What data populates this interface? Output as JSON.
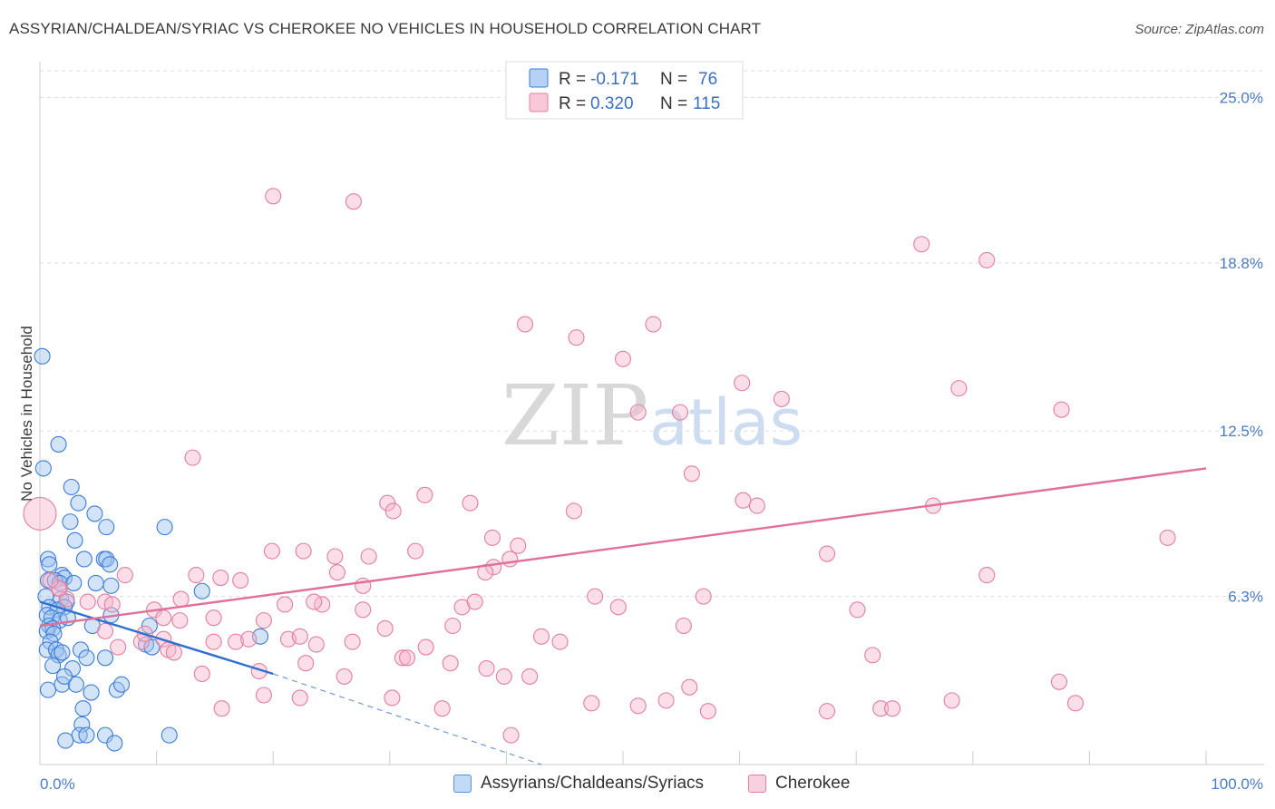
{
  "title": "ASSYRIAN/CHALDEAN/SYRIAC VS CHEROKEE NO VEHICLES IN HOUSEHOLD CORRELATION CHART",
  "source": "Source: ZipAtlas.com",
  "watermark": {
    "zip": "ZIP",
    "atlas": "atlas"
  },
  "colors": {
    "blue_fill": "#9dc2ef",
    "blue_stroke": "#3b7dd8",
    "blue_line": "#2f6fcf",
    "pink_fill": "#f6b6cb",
    "pink_stroke": "#e27fa0",
    "pink_line": "#e0709a",
    "tick_text": "#4a7cc8",
    "grid": "#dddddd"
  },
  "legend": {
    "rows": [
      {
        "r_label": "R =",
        "r_value": "-0.171",
        "n_label": "N =",
        "n_value": "76"
      },
      {
        "r_label": "R =",
        "r_value": "0.320",
        "n_label": "N =",
        "n_value": "115"
      }
    ]
  },
  "bottom_legend": {
    "items": [
      "Assyrians/Chaldeans/Syriacs",
      "Cherokee"
    ]
  },
  "chart_data": {
    "type": "scatter",
    "title": "ASSYRIAN/CHALDEAN/SYRIAC VS CHEROKEE NO VEHICLES IN HOUSEHOLD CORRELATION CHART",
    "xlabel": "",
    "ylabel": "No Vehicles in Household",
    "xlim": [
      0,
      100
    ],
    "ylim": [
      0,
      26
    ],
    "x_tick_labels": [
      "0.0%",
      "100.0%"
    ],
    "y_ticks": [
      6.3,
      12.5,
      18.8,
      25.0
    ],
    "y_tick_labels": [
      "6.3%",
      "12.5%",
      "18.8%",
      "25.0%"
    ],
    "grid": true,
    "series": [
      {
        "name": "Assyrians/Chaldeans/Syriacs",
        "R": -0.171,
        "N": 76,
        "trend": {
          "x0": 0,
          "y0": 6.1,
          "x1": 20,
          "y1": 3.4
        },
        "trend_dashed": {
          "x0": 20,
          "y0": 3.4,
          "x1": 43,
          "y1": 0
        },
        "points": [
          [
            0.2,
            15.3
          ],
          [
            0.3,
            11.1
          ],
          [
            1.6,
            12.0
          ],
          [
            2.7,
            10.4
          ],
          [
            3.3,
            9.8
          ],
          [
            4.7,
            9.4
          ],
          [
            5.7,
            8.9
          ],
          [
            10.7,
            8.9
          ],
          [
            2.6,
            9.1
          ],
          [
            3.0,
            8.4
          ],
          [
            0.7,
            7.7
          ],
          [
            0.8,
            7.5
          ],
          [
            3.8,
            7.7
          ],
          [
            5.5,
            7.7
          ],
          [
            5.7,
            7.7
          ],
          [
            6.0,
            7.5
          ],
          [
            1.9,
            7.1
          ],
          [
            2.1,
            7.0
          ],
          [
            0.7,
            6.9
          ],
          [
            1.3,
            6.9
          ],
          [
            1.7,
            6.8
          ],
          [
            2.9,
            6.8
          ],
          [
            4.8,
            6.8
          ],
          [
            6.1,
            6.7
          ],
          [
            0.5,
            6.3
          ],
          [
            1.8,
            6.2
          ],
          [
            2.3,
            6.1
          ],
          [
            0.8,
            5.9
          ],
          [
            2.1,
            5.9
          ],
          [
            1.5,
            5.8
          ],
          [
            0.6,
            5.6
          ],
          [
            1.0,
            5.5
          ],
          [
            1.7,
            5.4
          ],
          [
            2.4,
            5.5
          ],
          [
            4.5,
            5.2
          ],
          [
            6.1,
            5.6
          ],
          [
            9.4,
            5.2
          ],
          [
            13.9,
            6.5
          ],
          [
            0.8,
            5.2
          ],
          [
            1.1,
            5.1
          ],
          [
            0.6,
            5.0
          ],
          [
            1.2,
            4.9
          ],
          [
            0.9,
            4.6
          ],
          [
            0.6,
            4.3
          ],
          [
            1.4,
            4.3
          ],
          [
            1.6,
            4.1
          ],
          [
            1.9,
            4.2
          ],
          [
            3.5,
            4.3
          ],
          [
            4.0,
            4.0
          ],
          [
            5.6,
            4.0
          ],
          [
            9.1,
            4.5
          ],
          [
            9.6,
            4.4
          ],
          [
            18.9,
            4.8
          ],
          [
            1.1,
            3.7
          ],
          [
            2.8,
            3.6
          ],
          [
            1.9,
            3.0
          ],
          [
            3.1,
            3.0
          ],
          [
            2.1,
            3.3
          ],
          [
            0.7,
            2.8
          ],
          [
            4.4,
            2.7
          ],
          [
            6.6,
            2.8
          ],
          [
            7.0,
            3.0
          ],
          [
            3.7,
            2.1
          ],
          [
            3.6,
            1.5
          ],
          [
            3.4,
            1.1
          ],
          [
            4.0,
            1.1
          ],
          [
            5.6,
            1.1
          ],
          [
            11.1,
            1.1
          ],
          [
            2.2,
            0.9
          ],
          [
            6.4,
            0.8
          ]
        ]
      },
      {
        "name": "Cherokee",
        "R": 0.32,
        "N": 115,
        "trend": {
          "x0": 0,
          "y0": 5.2,
          "x1": 100,
          "y1": 11.1
        },
        "points": [
          [
            0.0,
            9.4
          ],
          [
            20.0,
            21.3
          ],
          [
            26.9,
            21.1
          ],
          [
            75.6,
            19.5
          ],
          [
            81.2,
            18.9
          ],
          [
            41.6,
            16.5
          ],
          [
            46.0,
            16.0
          ],
          [
            52.6,
            16.5
          ],
          [
            50.0,
            15.2
          ],
          [
            60.2,
            14.3
          ],
          [
            63.6,
            13.7
          ],
          [
            78.8,
            14.1
          ],
          [
            87.6,
            13.3
          ],
          [
            51.3,
            13.2
          ],
          [
            54.9,
            13.2
          ],
          [
            13.1,
            11.5
          ],
          [
            55.9,
            10.9
          ],
          [
            33.0,
            10.1
          ],
          [
            29.8,
            9.8
          ],
          [
            36.9,
            9.8
          ],
          [
            30.3,
            9.5
          ],
          [
            45.8,
            9.5
          ],
          [
            60.3,
            9.9
          ],
          [
            61.5,
            9.7
          ],
          [
            76.6,
            9.7
          ],
          [
            96.7,
            8.5
          ],
          [
            38.8,
            8.5
          ],
          [
            19.9,
            8.0
          ],
          [
            22.6,
            8.0
          ],
          [
            25.3,
            7.8
          ],
          [
            28.2,
            7.8
          ],
          [
            32.2,
            8.0
          ],
          [
            41.0,
            8.2
          ],
          [
            67.5,
            7.9
          ],
          [
            40.3,
            7.7
          ],
          [
            7.3,
            7.1
          ],
          [
            13.4,
            7.1
          ],
          [
            15.5,
            7.0
          ],
          [
            17.2,
            6.9
          ],
          [
            25.5,
            7.2
          ],
          [
            27.7,
            6.7
          ],
          [
            38.9,
            7.4
          ],
          [
            38.2,
            7.2
          ],
          [
            81.2,
            7.1
          ],
          [
            1.7,
            6.6
          ],
          [
            2.3,
            6.2
          ],
          [
            4.1,
            6.1
          ],
          [
            5.6,
            6.1
          ],
          [
            6.2,
            6.0
          ],
          [
            12.1,
            6.2
          ],
          [
            21.0,
            6.0
          ],
          [
            24.2,
            6.0
          ],
          [
            27.7,
            5.8
          ],
          [
            36.2,
            5.9
          ],
          [
            37.3,
            6.1
          ],
          [
            47.6,
            6.3
          ],
          [
            49.6,
            5.9
          ],
          [
            56.9,
            6.3
          ],
          [
            70.1,
            5.8
          ],
          [
            1.6,
            6.6
          ],
          [
            0.9,
            6.9
          ],
          [
            9.8,
            5.8
          ],
          [
            14.9,
            5.5
          ],
          [
            10.6,
            5.5
          ],
          [
            12.0,
            5.4
          ],
          [
            19.2,
            5.4
          ],
          [
            5.6,
            5.0
          ],
          [
            29.6,
            5.1
          ],
          [
            35.4,
            5.2
          ],
          [
            43.0,
            4.8
          ],
          [
            55.2,
            5.2
          ],
          [
            8.7,
            4.6
          ],
          [
            10.6,
            4.7
          ],
          [
            9.0,
            4.9
          ],
          [
            14.9,
            4.6
          ],
          [
            16.8,
            4.6
          ],
          [
            17.9,
            4.7
          ],
          [
            21.3,
            4.7
          ],
          [
            22.3,
            4.8
          ],
          [
            23.7,
            4.5
          ],
          [
            26.8,
            4.6
          ],
          [
            33.1,
            4.4
          ],
          [
            44.6,
            4.6
          ],
          [
            6.7,
            4.4
          ],
          [
            11.0,
            4.3
          ],
          [
            11.5,
            4.2
          ],
          [
            31.1,
            4.0
          ],
          [
            31.5,
            4.0
          ],
          [
            22.8,
            3.8
          ],
          [
            35.2,
            3.8
          ],
          [
            38.3,
            3.6
          ],
          [
            13.9,
            3.4
          ],
          [
            18.8,
            3.5
          ],
          [
            26.1,
            3.3
          ],
          [
            39.8,
            3.3
          ],
          [
            42.0,
            3.3
          ],
          [
            55.7,
            2.9
          ],
          [
            22.3,
            2.5
          ],
          [
            19.2,
            2.6
          ],
          [
            30.2,
            2.5
          ],
          [
            47.3,
            2.3
          ],
          [
            53.7,
            2.4
          ],
          [
            51.3,
            2.2
          ],
          [
            72.1,
            2.1
          ],
          [
            78.2,
            2.4
          ],
          [
            15.6,
            2.1
          ],
          [
            34.5,
            2.1
          ],
          [
            57.3,
            2.0
          ],
          [
            67.5,
            2.0
          ],
          [
            73.1,
            2.1
          ],
          [
            88.8,
            2.3
          ],
          [
            40.4,
            1.1
          ],
          [
            87.4,
            3.1
          ],
          [
            71.4,
            4.1
          ],
          [
            23.5,
            6.1
          ]
        ]
      }
    ]
  }
}
